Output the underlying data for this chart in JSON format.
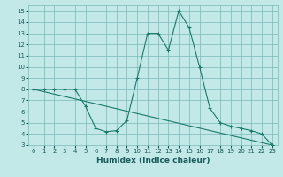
{
  "title": "",
  "xlabel": "Humidex (Indice chaleur)",
  "xlim": [
    -0.5,
    23.5
  ],
  "ylim": [
    3,
    15.5
  ],
  "yticks": [
    3,
    4,
    5,
    6,
    7,
    8,
    9,
    10,
    11,
    12,
    13,
    14,
    15
  ],
  "xticks": [
    0,
    1,
    2,
    3,
    4,
    5,
    6,
    7,
    8,
    9,
    10,
    11,
    12,
    13,
    14,
    15,
    16,
    17,
    18,
    19,
    20,
    21,
    22,
    23
  ],
  "bg_color": "#c2e8e8",
  "grid_color": "#7ab8b8",
  "line_color": "#1a7a6a",
  "line1_x": [
    0,
    1,
    2,
    3,
    4,
    5,
    6,
    7,
    8,
    9,
    10,
    11,
    12,
    13,
    14,
    15,
    16,
    17,
    18,
    19,
    20,
    21,
    22,
    23
  ],
  "line1_y": [
    8.0,
    8.0,
    8.0,
    8.0,
    8.0,
    6.5,
    4.5,
    4.2,
    4.3,
    5.2,
    9.0,
    13.0,
    13.0,
    11.5,
    15.0,
    13.5,
    10.0,
    6.3,
    5.0,
    4.7,
    4.5,
    4.3,
    4.0,
    3.0
  ],
  "line2_x": [
    0,
    23
  ],
  "line2_y": [
    8.0,
    3.0
  ],
  "tick_fontsize": 5,
  "xlabel_fontsize": 6.5
}
